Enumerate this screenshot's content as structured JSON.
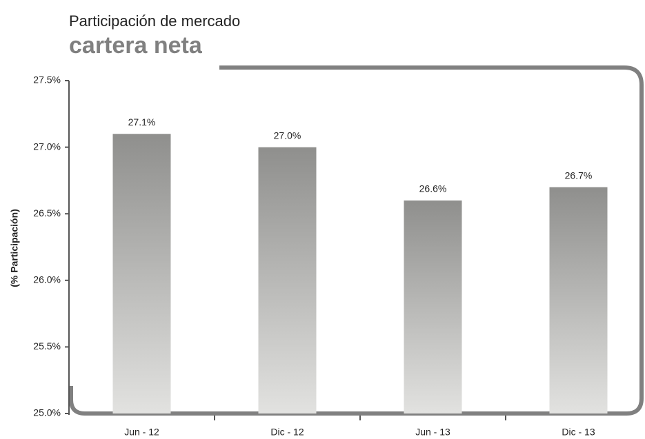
{
  "chart_data": {
    "type": "bar",
    "title": "Participación de mercado",
    "subtitle": "cartera neta",
    "y_label": "(% Participación)",
    "categories": [
      "Jun - 12",
      "Dic - 12",
      "Jun - 13",
      "Dic - 13"
    ],
    "values": [
      27.1,
      27.0,
      26.6,
      26.7
    ],
    "value_labels": [
      "27.1%",
      "27.0%",
      "26.6%",
      "26.7%"
    ],
    "color": "#8f8f8d",
    "ylim": [
      25,
      27.5
    ],
    "yticks": [
      {
        "value": 25,
        "label": "25.0%"
      },
      {
        "value": 25.5,
        "label": "25.5%"
      },
      {
        "value": 26,
        "label": "26.0%"
      },
      {
        "value": 26.5,
        "label": "26.5%"
      },
      {
        "value": 27,
        "label": "27.0%"
      },
      {
        "value": 27.5,
        "label": "27.5%"
      }
    ],
    "grid": false
  }
}
